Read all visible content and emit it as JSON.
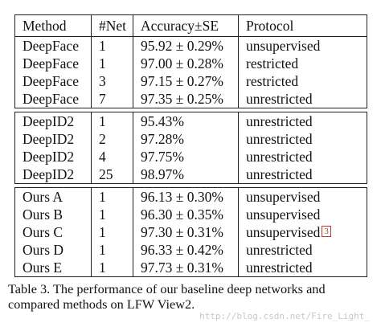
{
  "table": {
    "headers": [
      "Method",
      "#Net",
      "Accuracy±SE",
      "Protocol"
    ],
    "groups": [
      [
        {
          "method": "DeepFace",
          "net": "1",
          "accuracy": "95.92 ± 0.29%",
          "protocol": "unsupervised"
        },
        {
          "method": "DeepFace",
          "net": "1",
          "accuracy": "97.00 ± 0.28%",
          "protocol": "restricted"
        },
        {
          "method": "DeepFace",
          "net": "3",
          "accuracy": "97.15 ± 0.27%",
          "protocol": "restricted"
        },
        {
          "method": "DeepFace",
          "net": "7",
          "accuracy": "97.35 ± 0.25%",
          "protocol": "unrestricted"
        }
      ],
      [
        {
          "method": "DeepID2",
          "net": "1",
          "accuracy": "95.43%",
          "protocol": "unrestricted"
        },
        {
          "method": "DeepID2",
          "net": "2",
          "accuracy": "97.28%",
          "protocol": "unrestricted"
        },
        {
          "method": "DeepID2",
          "net": "4",
          "accuracy": "97.75%",
          "protocol": "unrestricted"
        },
        {
          "method": "DeepID2",
          "net": "25",
          "accuracy": "98.97%",
          "protocol": "unrestricted"
        }
      ],
      [
        {
          "method": "Ours A",
          "net": "1",
          "accuracy": "96.13 ± 0.30%",
          "protocol": "unsupervised"
        },
        {
          "method": "Ours B",
          "net": "1",
          "accuracy": "96.30 ± 0.35%",
          "protocol": "unsupervised"
        },
        {
          "method": "Ours C",
          "net": "1",
          "accuracy": "97.30 ± 0.31%",
          "protocol": "unsupervised",
          "ref": "3"
        },
        {
          "method": "Ours D",
          "net": "1",
          "accuracy": "96.33 ± 0.42%",
          "protocol": "unrestricted"
        },
        {
          "method": "Ours E",
          "net": "1",
          "accuracy": "97.73 ± 0.31%",
          "protocol": "unrestricted"
        }
      ]
    ]
  },
  "caption": "Table 3. The performance of our baseline deep networks and compared methods on LFW View2.",
  "watermark": "http://blog.csdn.net/Fire_Light_"
}
